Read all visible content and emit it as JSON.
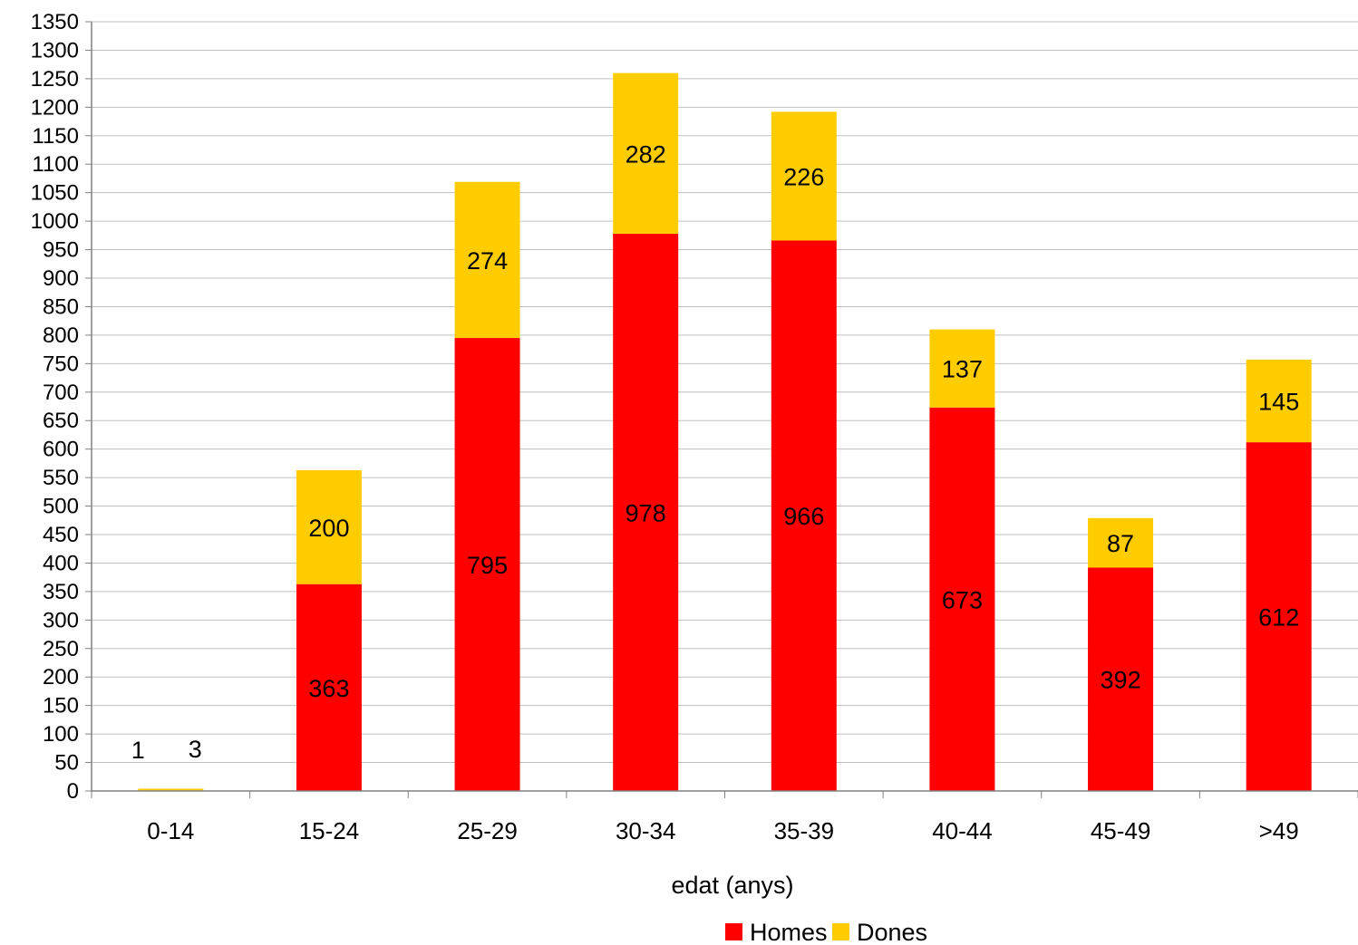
{
  "chart_data": {
    "type": "bar",
    "stacked": true,
    "categories": [
      "0-14",
      "15-24",
      "25-29",
      "30-34",
      "35-39",
      "40-44",
      "45-49",
      ">49"
    ],
    "series": [
      {
        "name": "Homes",
        "color": "#ff0000",
        "values": [
          1,
          363,
          795,
          978,
          966,
          673,
          392,
          612
        ]
      },
      {
        "name": "Dones",
        "color": "#ffcc00",
        "values": [
          3,
          200,
          274,
          282,
          226,
          137,
          87,
          145
        ]
      }
    ],
    "xlabel": "edat (anys)",
    "ylabel": "",
    "ylim": [
      0,
      1350
    ],
    "ytick_step": 50,
    "grid": true,
    "legend": "bottom"
  }
}
